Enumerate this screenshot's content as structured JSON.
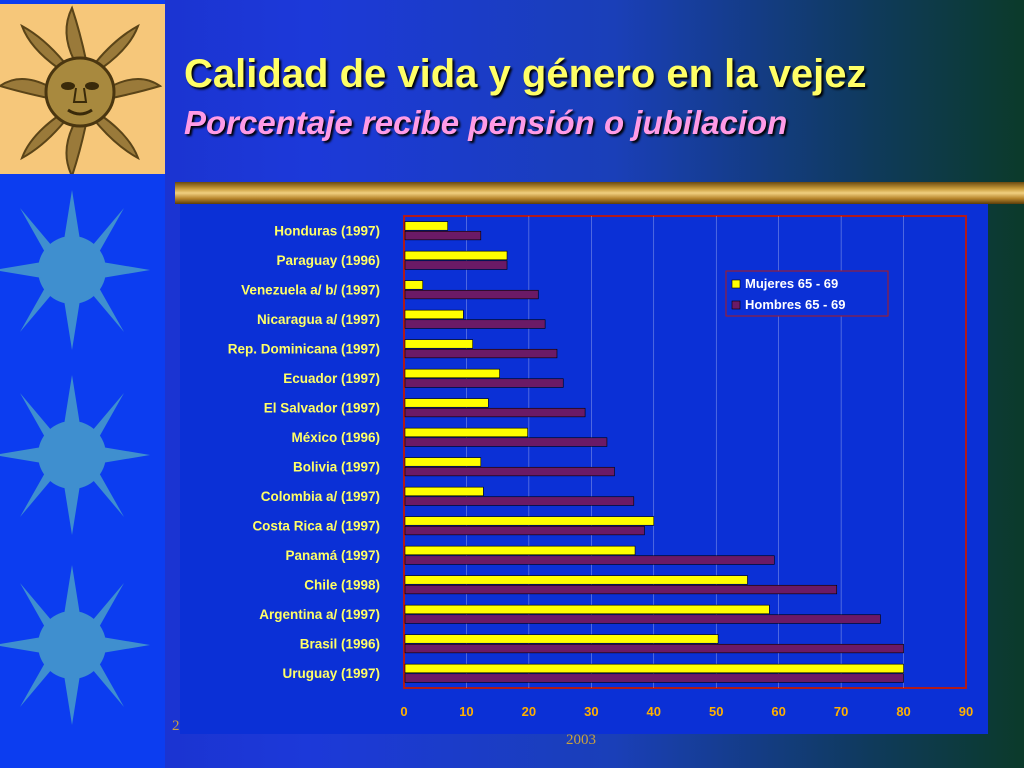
{
  "slide": {
    "title": "Calidad de vida y género en la vejez",
    "subtitle": "Porcentaje recibe pensión o jubilacion",
    "footer_year": "2003",
    "footer_left": "2"
  },
  "colors": {
    "mujeres": "#ffff00",
    "hombres": "#6b1a66",
    "axis_labels": "#ffff66",
    "tick_labels": "#ffb000",
    "grid": "#ffffff",
    "frame": "#b01a1a"
  },
  "chart_data": {
    "type": "bar",
    "orientation": "horizontal",
    "title": "",
    "xlabel": "",
    "ylabel": "",
    "xlim": [
      0,
      90
    ],
    "xticks": [
      0,
      10,
      20,
      30,
      40,
      50,
      60,
      70,
      80,
      90
    ],
    "grid": true,
    "legend_position": "top-right",
    "categories": [
      "Honduras (1997)",
      "Paraguay (1996)",
      "Venezuela a/  b/  (1997)",
      "Nicaragua a/ (1997)",
      "Rep. Dominicana (1997)",
      "Ecuador (1997)",
      "El Salvador (1997)",
      "México (1996)",
      "Bolivia (1997)",
      "Colombia a/ (1997)",
      "Costa Rica a/  (1997)",
      "Panamá (1997)",
      "Chile (1998)",
      "Argentina a/ (1997)",
      "Brasil (1996)",
      "Uruguay (1997)"
    ],
    "series": [
      {
        "name": "Mujeres 65 - 69",
        "values": [
          7,
          16.5,
          3,
          9.5,
          11,
          15.3,
          13.5,
          19.8,
          12.3,
          12.7,
          40,
          37,
          55,
          58.5,
          50.3,
          80
        ]
      },
      {
        "name": "Hombres 65 - 69",
        "values": [
          12.3,
          16.5,
          21.5,
          22.6,
          24.5,
          25.5,
          29,
          32.5,
          33.7,
          36.8,
          38.5,
          59.3,
          69.3,
          76.3,
          80,
          80
        ]
      }
    ]
  }
}
